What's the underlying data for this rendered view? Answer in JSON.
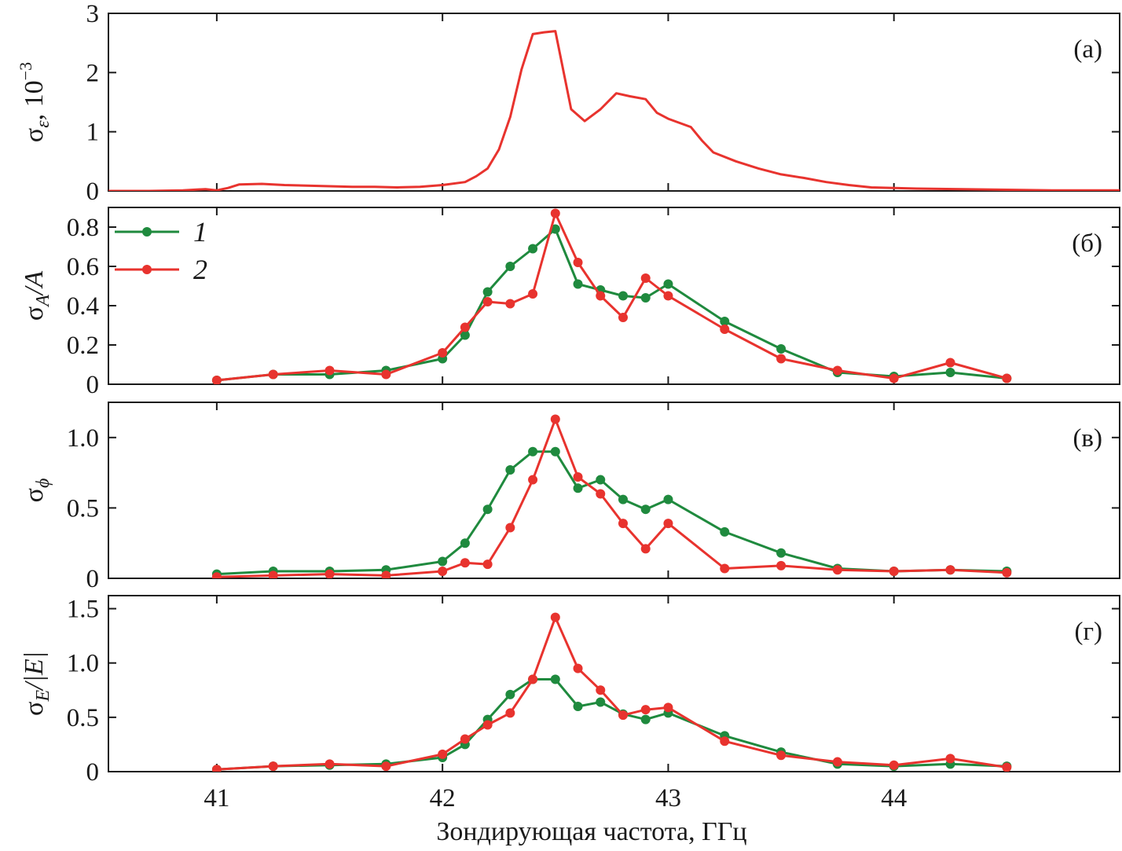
{
  "colors": {
    "series1": "#1f8a3e",
    "series2": "#e8332e",
    "axis": "#1a1a1a"
  },
  "xaxis": {
    "label": "Зондирующая частота, ГГц",
    "range": [
      40.52,
      45.0
    ],
    "ticks": [
      41,
      42,
      43,
      44
    ],
    "tick_labels": [
      "41",
      "42",
      "43",
      "44"
    ]
  },
  "legend": {
    "items": [
      {
        "num": "1",
        "series": "series1"
      },
      {
        "num": "2",
        "series": "series2"
      }
    ]
  },
  "chart_data": [
    {
      "type": "line",
      "id": "a",
      "tag": "(а)",
      "ylabel_main": "σ",
      "ylabel_sub": "ε",
      "ylabel_tail": ", 10",
      "ylabel_sup": "−3",
      "ylim": [
        0,
        3
      ],
      "yticks": [
        0,
        1,
        2,
        3
      ],
      "ytick_labels": [
        "0",
        "1",
        "2",
        "3"
      ],
      "series": [
        {
          "name": "σε",
          "color_key": "series2",
          "markers": false,
          "x": [
            40.52,
            40.7,
            40.85,
            40.95,
            41.0,
            41.05,
            41.1,
            41.2,
            41.3,
            41.4,
            41.5,
            41.6,
            41.7,
            41.8,
            41.9,
            42.0,
            42.1,
            42.15,
            42.2,
            42.25,
            42.3,
            42.35,
            42.4,
            42.45,
            42.5,
            42.57,
            42.63,
            42.7,
            42.77,
            42.83,
            42.9,
            42.95,
            43.0,
            43.1,
            43.15,
            43.2,
            43.3,
            43.4,
            43.5,
            43.6,
            43.7,
            43.8,
            43.9,
            44.0,
            44.1,
            44.3,
            44.5,
            44.7,
            45.0
          ],
          "y": [
            0.0,
            0.0,
            0.01,
            0.03,
            0.01,
            0.05,
            0.11,
            0.12,
            0.1,
            0.09,
            0.08,
            0.07,
            0.07,
            0.06,
            0.07,
            0.1,
            0.15,
            0.25,
            0.38,
            0.7,
            1.25,
            2.05,
            2.65,
            2.68,
            2.7,
            1.38,
            1.18,
            1.38,
            1.65,
            1.6,
            1.55,
            1.32,
            1.22,
            1.08,
            0.85,
            0.65,
            0.5,
            0.38,
            0.28,
            0.22,
            0.15,
            0.1,
            0.06,
            0.05,
            0.04,
            0.03,
            0.02,
            0.01,
            0.01
          ]
        }
      ]
    },
    {
      "type": "line",
      "id": "b",
      "tag": "(б)",
      "ylabel_main": "σ",
      "ylabel_sub": "A",
      "ylabel_tail": "/A",
      "ylim": [
        0,
        0.9
      ],
      "yticks": [
        0,
        0.2,
        0.4,
        0.6,
        0.8
      ],
      "ytick_labels": [
        "0",
        "0.2",
        "0.4",
        "0.6",
        "0.8"
      ],
      "series": [
        {
          "name": "1",
          "color_key": "series1",
          "markers": true,
          "x": [
            41.0,
            41.25,
            41.5,
            41.75,
            42.0,
            42.1,
            42.2,
            42.3,
            42.4,
            42.5,
            42.6,
            42.7,
            42.8,
            42.9,
            43.0,
            43.25,
            43.5,
            43.75,
            44.0,
            44.25,
            44.5
          ],
          "y": [
            0.02,
            0.05,
            0.05,
            0.07,
            0.13,
            0.25,
            0.47,
            0.6,
            0.69,
            0.79,
            0.51,
            0.48,
            0.45,
            0.44,
            0.51,
            0.32,
            0.18,
            0.06,
            0.04,
            0.06,
            0.03
          ]
        },
        {
          "name": "2",
          "color_key": "series2",
          "markers": true,
          "x": [
            41.0,
            41.25,
            41.5,
            41.75,
            42.0,
            42.1,
            42.2,
            42.3,
            42.4,
            42.5,
            42.6,
            42.7,
            42.8,
            42.9,
            43.0,
            43.25,
            43.5,
            43.75,
            44.0,
            44.25,
            44.5
          ],
          "y": [
            0.02,
            0.05,
            0.07,
            0.05,
            0.16,
            0.29,
            0.42,
            0.41,
            0.46,
            0.87,
            0.62,
            0.45,
            0.34,
            0.54,
            0.45,
            0.28,
            0.13,
            0.07,
            0.03,
            0.11,
            0.03
          ]
        }
      ]
    },
    {
      "type": "line",
      "id": "v",
      "tag": "(в)",
      "ylabel_main": "σ",
      "ylabel_sub": "ϕ",
      "ylabel_tail": "",
      "ylim": [
        0,
        1.25
      ],
      "yticks": [
        0,
        0.5,
        1.0
      ],
      "ytick_labels": [
        "0",
        "0.5",
        "1.0"
      ],
      "series": [
        {
          "name": "1",
          "color_key": "series1",
          "markers": true,
          "x": [
            41.0,
            41.25,
            41.5,
            41.75,
            42.0,
            42.1,
            42.2,
            42.3,
            42.4,
            42.5,
            42.6,
            42.7,
            42.8,
            42.9,
            43.0,
            43.25,
            43.5,
            43.75,
            44.0,
            44.25,
            44.5
          ],
          "y": [
            0.03,
            0.05,
            0.05,
            0.06,
            0.12,
            0.25,
            0.49,
            0.77,
            0.9,
            0.9,
            0.64,
            0.7,
            0.56,
            0.49,
            0.56,
            0.33,
            0.18,
            0.07,
            0.05,
            0.06,
            0.05
          ]
        },
        {
          "name": "2",
          "color_key": "series2",
          "markers": true,
          "x": [
            41.0,
            41.25,
            41.5,
            41.75,
            42.0,
            42.1,
            42.2,
            42.3,
            42.4,
            42.5,
            42.6,
            42.7,
            42.8,
            42.9,
            43.0,
            43.25,
            43.5,
            43.75,
            44.0,
            44.25,
            44.5
          ],
          "y": [
            0.01,
            0.02,
            0.03,
            0.02,
            0.05,
            0.11,
            0.1,
            0.36,
            0.7,
            1.13,
            0.72,
            0.6,
            0.39,
            0.21,
            0.39,
            0.07,
            0.09,
            0.06,
            0.05,
            0.06,
            0.04
          ]
        }
      ]
    },
    {
      "type": "line",
      "id": "g",
      "tag": "(г)",
      "ylabel_main": "σ",
      "ylabel_sub": "E",
      "ylabel_tail": "/|E|",
      "ylim": [
        0,
        1.62
      ],
      "yticks": [
        0,
        0.5,
        1.0,
        1.5
      ],
      "ytick_labels": [
        "0",
        "0.5",
        "1.0",
        "1.5"
      ],
      "series": [
        {
          "name": "1",
          "color_key": "series1",
          "markers": true,
          "x": [
            41.0,
            41.25,
            41.5,
            41.75,
            42.0,
            42.1,
            42.2,
            42.3,
            42.4,
            42.5,
            42.6,
            42.7,
            42.8,
            42.9,
            43.0,
            43.25,
            43.5,
            43.75,
            44.0,
            44.25,
            44.5
          ],
          "y": [
            0.02,
            0.05,
            0.06,
            0.07,
            0.13,
            0.25,
            0.48,
            0.71,
            0.85,
            0.85,
            0.6,
            0.64,
            0.53,
            0.48,
            0.54,
            0.33,
            0.18,
            0.07,
            0.05,
            0.07,
            0.05
          ]
        },
        {
          "name": "2",
          "color_key": "series2",
          "markers": true,
          "x": [
            41.0,
            41.25,
            41.5,
            41.75,
            42.0,
            42.1,
            42.2,
            42.3,
            42.4,
            42.5,
            42.6,
            42.7,
            42.8,
            42.9,
            43.0,
            43.25,
            43.5,
            43.75,
            44.0,
            44.25,
            44.5
          ],
          "y": [
            0.02,
            0.05,
            0.07,
            0.05,
            0.16,
            0.3,
            0.43,
            0.54,
            0.85,
            1.42,
            0.95,
            0.75,
            0.52,
            0.57,
            0.59,
            0.28,
            0.15,
            0.09,
            0.06,
            0.12,
            0.04
          ]
        }
      ]
    }
  ]
}
